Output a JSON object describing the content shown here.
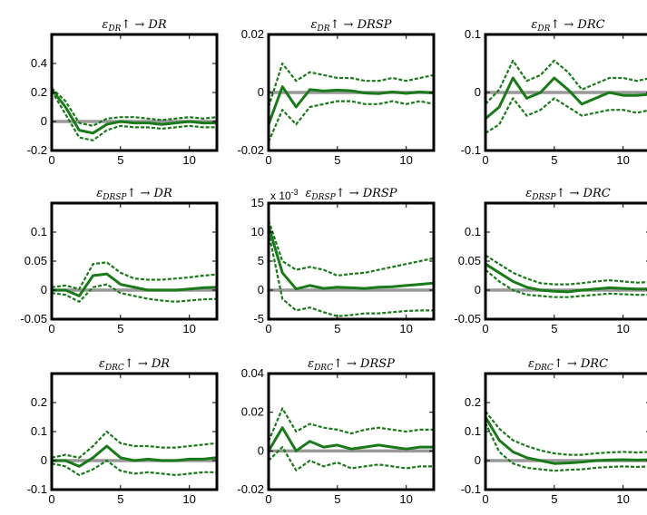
{
  "figure": {
    "series_colors": {
      "irf": "#1a7a1a",
      "band": "#1a7a1a",
      "zero_line": "#999999"
    }
  },
  "chart_data": [
    {
      "type": "line",
      "panel": "1-1",
      "title": "ε_DR↑ → DR",
      "xlim": [
        0,
        12
      ],
      "ylim": [
        -0.2,
        0.6
      ],
      "xticks": [
        "0",
        "5",
        "10"
      ],
      "yticks": [
        "-0.2",
        "0",
        "0.2",
        "0.4"
      ],
      "x": [
        0,
        1,
        2,
        3,
        4,
        5,
        6,
        7,
        8,
        9,
        10,
        11,
        12
      ],
      "series": [
        {
          "values": [
            0.22,
            0.1,
            -0.06,
            -0.08,
            -0.02,
            0.0,
            -0.01,
            -0.01,
            -0.02,
            -0.01,
            0.0,
            -0.01,
            -0.01
          ]
        },
        {
          "values": [
            0.21,
            0.05,
            -0.11,
            -0.13,
            -0.06,
            -0.03,
            -0.04,
            -0.04,
            -0.05,
            -0.04,
            -0.03,
            -0.04,
            -0.04
          ]
        },
        {
          "values": [
            0.23,
            0.14,
            -0.01,
            -0.03,
            0.02,
            0.03,
            0.03,
            0.02,
            0.01,
            0.02,
            0.03,
            0.02,
            0.03
          ]
        }
      ],
      "zero_line": 0
    },
    {
      "type": "line",
      "panel": "1-2",
      "title": "ε_DR↑ → DRSP",
      "xlim": [
        0,
        12
      ],
      "ylim": [
        -0.02,
        0.02
      ],
      "xticks": [
        "0",
        "5",
        "10"
      ],
      "yticks": [
        "-0.02",
        "0",
        "0.02"
      ],
      "x": [
        0,
        1,
        2,
        3,
        4,
        5,
        6,
        7,
        8,
        9,
        10,
        11,
        12
      ],
      "series": [
        {
          "values": [
            -0.011,
            0.002,
            -0.005,
            0.001,
            0.0005,
            0.0008,
            0.0006,
            -0.0002,
            -0.0004,
            0.0002,
            -0.0003,
            0.0002,
            -0.0002
          ]
        },
        {
          "values": [
            -0.017,
            -0.006,
            -0.011,
            -0.005,
            -0.004,
            -0.003,
            -0.003,
            -0.004,
            -0.004,
            -0.003,
            -0.004,
            -0.003,
            -0.004
          ]
        },
        {
          "values": [
            -0.005,
            0.01,
            0.004,
            0.007,
            0.006,
            0.005,
            0.005,
            0.004,
            0.004,
            0.005,
            0.004,
            0.005,
            0.006
          ]
        }
      ],
      "zero_line": 0
    },
    {
      "type": "line",
      "panel": "1-3",
      "title": "ε_DR↑ → DRC",
      "xlim": [
        0,
        12
      ],
      "ylim": [
        -0.1,
        0.1
      ],
      "xticks": [
        "0",
        "5",
        "10"
      ],
      "yticks": [
        "-0.1",
        "0",
        "0.1"
      ],
      "x": [
        0,
        1,
        2,
        3,
        4,
        5,
        6,
        7,
        8,
        9,
        10,
        11,
        12
      ],
      "series": [
        {
          "values": [
            -0.045,
            -0.025,
            0.025,
            -0.01,
            0.0,
            0.025,
            0.005,
            -0.02,
            -0.01,
            0.0,
            -0.005,
            -0.005,
            -0.003
          ]
        },
        {
          "values": [
            -0.07,
            -0.055,
            -0.01,
            -0.04,
            -0.03,
            -0.01,
            -0.025,
            -0.04,
            -0.035,
            -0.03,
            -0.03,
            -0.035,
            -0.03
          ]
        },
        {
          "values": [
            -0.02,
            0.005,
            0.055,
            0.02,
            0.03,
            0.055,
            0.035,
            0.005,
            0.015,
            0.025,
            0.025,
            0.02,
            0.025
          ]
        }
      ],
      "zero_line": 0
    },
    {
      "type": "line",
      "panel": "2-1",
      "title": "ε_DRSP↑ → DR",
      "xlim": [
        0,
        12
      ],
      "ylim": [
        -0.05,
        0.15
      ],
      "xticks": [
        "0",
        "5",
        "10"
      ],
      "yticks": [
        "-0.05",
        "0",
        "0.05",
        "0.1"
      ],
      "x": [
        0,
        1,
        2,
        3,
        4,
        5,
        6,
        7,
        8,
        9,
        10,
        11,
        12
      ],
      "series": [
        {
          "values": [
            0.0,
            0.0,
            -0.01,
            0.025,
            0.028,
            0.01,
            0.005,
            0.0,
            0.0,
            0.0,
            0.002,
            0.004,
            0.005
          ]
        },
        {
          "values": [
            -0.005,
            -0.008,
            -0.02,
            0.005,
            0.01,
            -0.005,
            -0.01,
            -0.015,
            -0.018,
            -0.02,
            -0.018,
            -0.016,
            -0.015
          ]
        },
        {
          "values": [
            0.005,
            0.008,
            0.002,
            0.045,
            0.048,
            0.03,
            0.02,
            0.018,
            0.018,
            0.02,
            0.022,
            0.025,
            0.027
          ]
        }
      ],
      "zero_line": 0
    },
    {
      "type": "line",
      "panel": "2-2",
      "title": "ε_DRSP↑ → DRSP",
      "exponent_label": "x 10",
      "exponent_power": "-3",
      "xlim": [
        0,
        12
      ],
      "ylim": [
        -5,
        15
      ],
      "xticks": [
        "0",
        "5",
        "10"
      ],
      "yticks": [
        "-5",
        "0",
        "5",
        "10",
        "15"
      ],
      "x": [
        0,
        1,
        2,
        3,
        4,
        5,
        6,
        7,
        8,
        9,
        10,
        11,
        12
      ],
      "series": [
        {
          "values": [
            11.0,
            3.0,
            0.2,
            0.8,
            0.3,
            0.5,
            0.4,
            0.3,
            0.5,
            0.6,
            0.8,
            1.0,
            1.2
          ]
        },
        {
          "values": [
            10.0,
            -1.5,
            -3.5,
            -3.0,
            -3.8,
            -4.5,
            -4.3,
            -4.0,
            -4.0,
            -3.8,
            -3.6,
            -3.5,
            -3.5
          ]
        },
        {
          "values": [
            12.0,
            5.0,
            3.5,
            4.0,
            3.5,
            2.5,
            2.8,
            3.0,
            3.5,
            4.0,
            4.5,
            5.0,
            5.5
          ]
        }
      ],
      "zero_line": 0
    },
    {
      "type": "line",
      "panel": "2-3",
      "title": "ε_DRSP↑ → DRC",
      "xlim": [
        0,
        12
      ],
      "ylim": [
        -0.05,
        0.15
      ],
      "xticks": [
        "0",
        "5",
        "10"
      ],
      "yticks": [
        "-0.05",
        "0",
        "0.05",
        "0.1"
      ],
      "x": [
        0,
        1,
        2,
        3,
        4,
        5,
        6,
        7,
        8,
        9,
        10,
        11,
        12
      ],
      "series": [
        {
          "values": [
            0.045,
            0.03,
            0.015,
            0.005,
            0.0,
            -0.002,
            -0.003,
            0.0,
            0.002,
            0.004,
            0.003,
            0.002,
            0.002
          ]
        },
        {
          "values": [
            0.035,
            0.015,
            0.0,
            -0.008,
            -0.01,
            -0.012,
            -0.012,
            -0.01,
            -0.008,
            -0.006,
            -0.007,
            -0.008,
            -0.008
          ]
        },
        {
          "values": [
            0.06,
            0.045,
            0.03,
            0.02,
            0.012,
            0.01,
            0.01,
            0.012,
            0.015,
            0.017,
            0.015,
            0.013,
            0.014
          ]
        }
      ],
      "zero_line": 0
    },
    {
      "type": "line",
      "panel": "3-1",
      "title": "ε_DRC↑ → DR",
      "xlim": [
        0,
        12
      ],
      "ylim": [
        -0.1,
        0.3
      ],
      "xticks": [
        "0",
        "5",
        "10"
      ],
      "yticks": [
        "-0.1",
        "0",
        "0.1",
        "0.2"
      ],
      "x": [
        0,
        1,
        2,
        3,
        4,
        5,
        6,
        7,
        8,
        9,
        10,
        11,
        12
      ],
      "series": [
        {
          "values": [
            0.0,
            0.0,
            -0.02,
            0.01,
            0.05,
            0.01,
            0.0,
            0.005,
            0.0,
            0.0,
            0.005,
            0.005,
            0.01
          ]
        },
        {
          "values": [
            -0.01,
            -0.02,
            -0.05,
            -0.03,
            0.0,
            -0.035,
            -0.045,
            -0.04,
            -0.045,
            -0.05,
            -0.045,
            -0.04,
            -0.04
          ]
        },
        {
          "values": [
            0.01,
            0.02,
            0.01,
            0.05,
            0.1,
            0.06,
            0.05,
            0.05,
            0.045,
            0.045,
            0.05,
            0.055,
            0.06
          ]
        }
      ],
      "zero_line": 0
    },
    {
      "type": "line",
      "panel": "3-2",
      "title": "ε_DRC↑ → DRSP",
      "xlim": [
        0,
        12
      ],
      "ylim": [
        -0.02,
        0.04
      ],
      "xticks": [
        "0",
        "5",
        "10"
      ],
      "yticks": [
        "-0.02",
        "0",
        "0.02",
        "0.04"
      ],
      "x": [
        0,
        1,
        2,
        3,
        4,
        5,
        6,
        7,
        8,
        9,
        10,
        11,
        12
      ],
      "series": [
        {
          "values": [
            0.0,
            0.012,
            0.0,
            0.005,
            0.002,
            0.003,
            0.001,
            0.002,
            0.003,
            0.002,
            0.001,
            0.002,
            0.002
          ]
        },
        {
          "values": [
            -0.005,
            0.002,
            -0.01,
            -0.005,
            -0.008,
            -0.006,
            -0.009,
            -0.008,
            -0.007,
            -0.008,
            -0.009,
            -0.008,
            -0.008
          ]
        },
        {
          "values": [
            0.005,
            0.022,
            0.01,
            0.014,
            0.012,
            0.011,
            0.009,
            0.011,
            0.012,
            0.011,
            0.01,
            0.011,
            0.011
          ]
        }
      ],
      "zero_line": 0
    },
    {
      "type": "line",
      "panel": "3-3",
      "title": "ε_DRC↑ → DRC",
      "xlim": [
        0,
        12
      ],
      "ylim": [
        -0.1,
        0.3
      ],
      "xticks": [
        "0",
        "5",
        "10"
      ],
      "yticks": [
        "-0.1",
        "0",
        "0.1",
        "0.2"
      ],
      "x": [
        0,
        1,
        2,
        3,
        4,
        5,
        6,
        7,
        8,
        9,
        10,
        11,
        12
      ],
      "series": [
        {
          "values": [
            0.15,
            0.07,
            0.03,
            0.01,
            0.0,
            -0.01,
            -0.008,
            -0.005,
            0.0,
            0.002,
            0.003,
            0.002,
            0.003
          ]
        },
        {
          "values": [
            0.13,
            0.03,
            -0.01,
            -0.025,
            -0.03,
            -0.035,
            -0.032,
            -0.03,
            -0.025,
            -0.022,
            -0.02,
            -0.022,
            -0.02
          ]
        },
        {
          "values": [
            0.17,
            0.11,
            0.07,
            0.05,
            0.035,
            0.025,
            0.02,
            0.02,
            0.025,
            0.028,
            0.03,
            0.028,
            0.03
          ]
        }
      ],
      "zero_line": 0
    }
  ]
}
